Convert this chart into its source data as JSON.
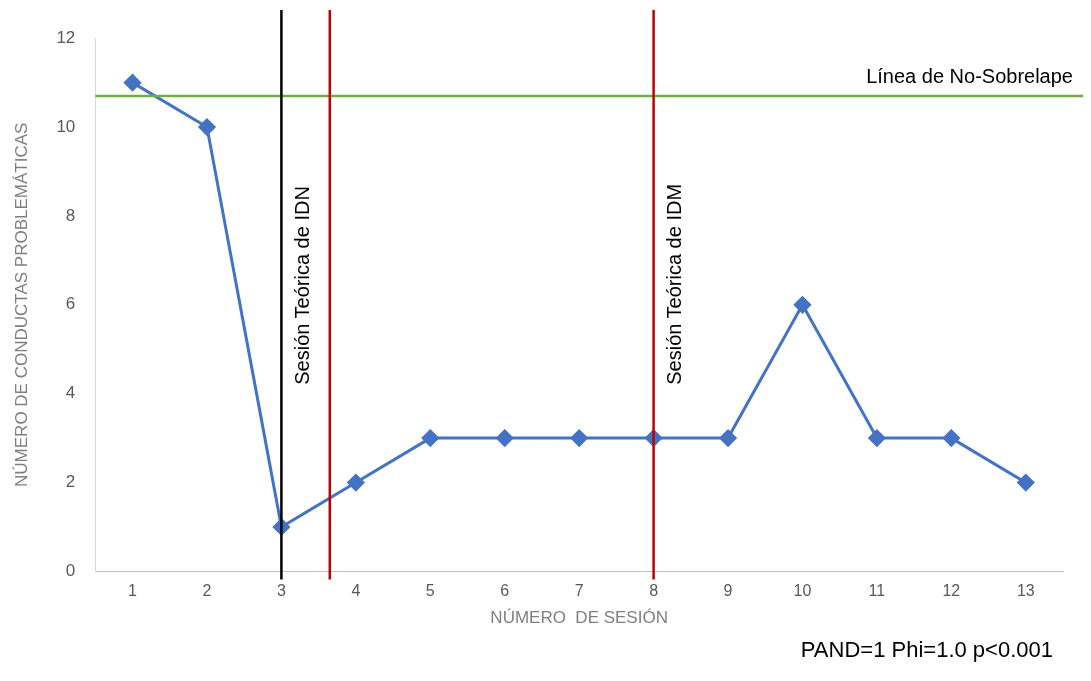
{
  "chart_data": {
    "type": "line",
    "xlabel": "NÚMERO  DE SESIÓN",
    "ylabel": "NÚMERO DE CONDUCTAS PROBLEMÁTICAS",
    "x": [
      1,
      2,
      3,
      4,
      5,
      6,
      7,
      8,
      9,
      10,
      11,
      12,
      13
    ],
    "series": [
      {
        "color": "#4472c4",
        "values": [
          11,
          10,
          1,
          2,
          3,
          3,
          3,
          3,
          3,
          6,
          3,
          3,
          2
        ]
      }
    ],
    "xlim": [
      0.5,
      13.5
    ],
    "xticks": [
      1,
      2,
      3,
      4,
      5,
      6,
      7,
      8,
      9,
      10,
      11,
      12,
      13
    ],
    "ylim": [
      0,
      12
    ],
    "yticks": [
      0,
      2,
      4,
      6,
      8,
      10,
      12
    ],
    "grid": false,
    "legend": false,
    "marker": "diamond",
    "line_style": "solid",
    "ref_lines": [
      {
        "axis": "y",
        "value": 10.7,
        "label": "Línea de No-Sobrelape",
        "color": "#70ad47"
      },
      {
        "axis": "x",
        "value": 3,
        "label": "Sesión Teórica de IDN",
        "color": "#000000"
      },
      {
        "axis": "x",
        "value": 3.65,
        "color": "#c00000"
      },
      {
        "axis": "x",
        "value": 8,
        "label": "Sesión Teórica de IDM",
        "color": "#c00000"
      }
    ],
    "annotations": [
      "PAND=1 Phi=1.0 p<0.001"
    ]
  }
}
